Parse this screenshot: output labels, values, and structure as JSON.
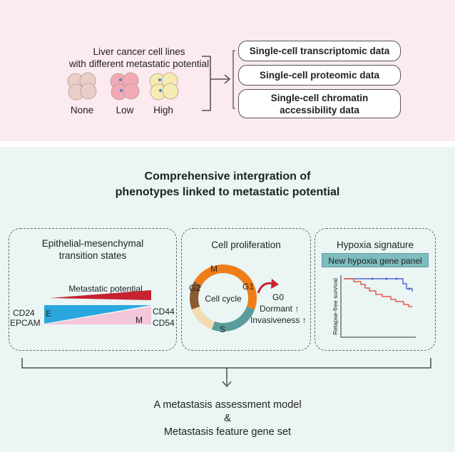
{
  "top": {
    "title_line1": "Liver cancer cell lines",
    "title_line2": "with different metastatic potential",
    "cell_lines": [
      {
        "label": "None",
        "color": "#e9cfc7"
      },
      {
        "label": "Low",
        "color": "#f2aab6"
      },
      {
        "label": "High",
        "color": "#f4ecb2"
      }
    ],
    "data_types": [
      "Single-cell transcriptomic data",
      "Single-cell proteomic data",
      "Single-cell chromatin accessibility data"
    ]
  },
  "integration": {
    "heading_line1": "Comprehensive  intergration of",
    "heading_line2": "phenotypes linked to metastatic potential"
  },
  "emt_panel": {
    "title_line1": "Epithelial-mesenchymal",
    "title_line2": "transition states",
    "metastatic_potential": "Metastatic potential",
    "left_marker1": "CD24",
    "left_marker2": "EPCAM",
    "right_marker1": "CD44",
    "right_marker2": "CD54",
    "e_label": "E",
    "m_label": "M",
    "colors": {
      "red": "#c62232",
      "blue": "#2aa7df",
      "pink": "#f4c6da"
    }
  },
  "proliferation_panel": {
    "title": "Cell proliferation",
    "center_label": "Cell cycle",
    "phases": [
      "M",
      "G1",
      "S",
      "G2"
    ],
    "g0_label": "G0",
    "dormant_label": "Dormant ↑",
    "invasiveness_label": "Invasiveness ↑",
    "colors": {
      "M": "#8a5a32",
      "G1": "#ef7d1a",
      "S": "#5a9c9a",
      "G2": "#f3dcb4"
    }
  },
  "hypoxia_panel": {
    "title": "Hypoxia signature",
    "gene_panel_label": "New hypoxia gene panel",
    "ylabel": "Relapse-free survival",
    "colors": {
      "panel": "#7fbcbe",
      "blue_line": "#3049c9",
      "red_line": "#e23a2e"
    }
  },
  "output": {
    "line1": "A metastasis assessment model",
    "line2": "&",
    "line3": "Metastasis feature gene set"
  }
}
